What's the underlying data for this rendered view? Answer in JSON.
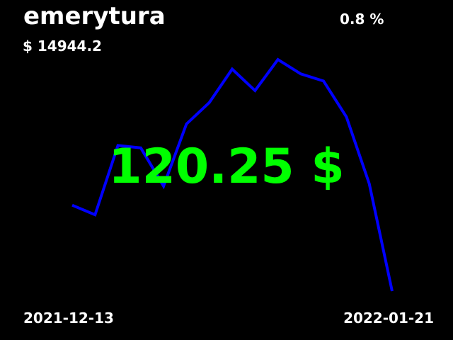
{
  "header": {
    "title": "emerytura",
    "balance": "$ 14944.2",
    "change": "0.8 %"
  },
  "main": {
    "value": "120.25 $"
  },
  "footer": {
    "start_date": "2021-12-13",
    "end_date": "2022-01-21"
  },
  "colors": {
    "background": "#000000",
    "text": "#ffffff",
    "line": "#0000ff",
    "value": "#00ff00"
  },
  "chart_data": {
    "type": "line",
    "x_range": [
      "2021-12-13",
      "2022-01-21"
    ],
    "series": [
      {
        "values": [
          0.36,
          0.32,
          0.61,
          0.6,
          0.44,
          0.7,
          0.79,
          0.93,
          0.84,
          0.97,
          0.91,
          0.88,
          0.73,
          0.45,
          0.0
        ]
      }
    ],
    "ylim": [
      0,
      1
    ],
    "grid": false,
    "legend": "none"
  }
}
